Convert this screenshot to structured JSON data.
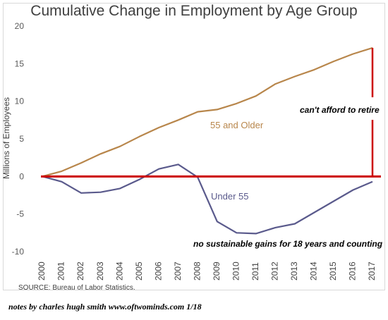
{
  "chart_data": {
    "type": "line",
    "title": "Cumulative Change in Employment by Age Group",
    "ylabel": "Millions of Employees",
    "xlabel": "",
    "ylim": [
      -10,
      20
    ],
    "yticks": [
      20,
      15,
      10,
      5,
      0,
      -5,
      -10
    ],
    "categories": [
      "2000",
      "2001",
      "2002",
      "2003",
      "2004",
      "2005",
      "2006",
      "2007",
      "2008",
      "2009",
      "2010",
      "2011",
      "2012",
      "2013",
      "2014",
      "2015",
      "2016",
      "2017"
    ],
    "series": [
      {
        "name": "55 and Older",
        "color": "#b8864b",
        "values": [
          0,
          0.7,
          1.8,
          3.0,
          4.0,
          5.3,
          6.5,
          7.5,
          8.6,
          8.9,
          9.7,
          10.7,
          12.3,
          13.3,
          14.2,
          15.3,
          16.3,
          17.1
        ]
      },
      {
        "name": "Under 55",
        "color": "#5a5a8c",
        "values": [
          0,
          -0.7,
          -2.2,
          -2.1,
          -1.6,
          -0.4,
          1.0,
          1.6,
          -0.1,
          -6.0,
          -7.5,
          -7.6,
          -6.8,
          -6.3,
          -4.8,
          -3.3,
          -1.8,
          -0.7
        ]
      }
    ],
    "annotations": [
      {
        "text": "can't afford to retire"
      },
      {
        "text": "no sustainable gains for 18 years and counting"
      }
    ],
    "grid": false,
    "legend": "none"
  },
  "colors": {
    "highlight": "#cc0000"
  },
  "footer": {
    "source": "SOURCE: Bureau of Labor Statistics.",
    "notes": "notes by charles hugh smith   www.oftwominds.com   1/18"
  }
}
